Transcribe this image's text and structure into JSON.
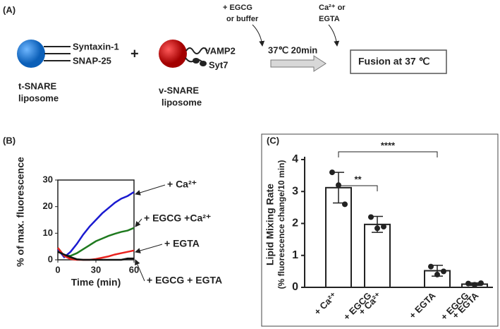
{
  "panel_a": {
    "label": "(A)",
    "t_snare_proteins": [
      "Syntaxin-1",
      "SNAP-25"
    ],
    "t_snare_name": [
      "t-SNARE",
      "liposome"
    ],
    "plus": "+",
    "v_snare_proteins": [
      "VAMP2",
      "Syt7"
    ],
    "v_snare_name": [
      "v-SNARE",
      "liposome"
    ],
    "first_addition": [
      "+ EGCG",
      "or buffer"
    ],
    "incubation": "37℃ 20min",
    "second_addition": [
      "Ca²⁺ or",
      "EGTA"
    ],
    "result": "Fusion at 37 ℃"
  },
  "chart_data": [
    {
      "type": "line",
      "panel_label": "(B)",
      "xlabel": "Time (min)",
      "ylabel": "% of max. fluorescence",
      "x": [
        0,
        5,
        10,
        15,
        20,
        25,
        30,
        35,
        40,
        45,
        50,
        55,
        60
      ],
      "series": [
        {
          "name": "+ Ca²⁺",
          "color": "#1a1ad0",
          "values": [
            4,
            1,
            3,
            6,
            9.5,
            12.5,
            15,
            17.5,
            19.5,
            21.5,
            23,
            24,
            25.5
          ]
        },
        {
          "name": "+ EGCG +Ca²⁺",
          "color": "#1f7a1f",
          "values": [
            4.5,
            1.5,
            1.5,
            2.5,
            4,
            5.5,
            7,
            8,
            9,
            9.8,
            10.5,
            11,
            12
          ]
        },
        {
          "name": "+ EGTA",
          "color": "#e8231f",
          "values": [
            4.5,
            1.5,
            0.3,
            0,
            0,
            0,
            0.3,
            0.8,
            1.3,
            2,
            2.5,
            3,
            3.5
          ]
        },
        {
          "name": "+ EGCG + EGTA",
          "color": "#111111",
          "values": [
            3,
            2,
            1,
            0.2,
            0,
            0,
            0,
            0,
            0,
            0,
            0,
            0.5,
            0.5
          ]
        }
      ],
      "xlim": [
        0,
        60
      ],
      "ylim": [
        0,
        30
      ],
      "xticks": [
        0,
        30,
        60
      ],
      "yticks": [
        0,
        10,
        20,
        30
      ]
    },
    {
      "type": "bar",
      "panel_label": "(C)",
      "ylabel": [
        "Lipid Mixing Rate",
        "(% fluorescence change/10 min)"
      ],
      "categories": [
        [
          "+ Ca²⁺"
        ],
        [
          "+ EGCG",
          "+ Ca²⁺"
        ],
        [
          "+ EGTA"
        ],
        [
          "+ EGCG",
          "+ EGTA"
        ]
      ],
      "values": [
        3.12,
        1.97,
        0.52,
        0.1
      ],
      "errors": [
        0.48,
        0.25,
        0.17,
        0.04
      ],
      "points": [
        [
          3.6,
          3.2,
          2.6
        ],
        [
          2.2,
          1.85,
          1.9
        ],
        [
          0.65,
          0.4,
          0.5
        ],
        [
          0.12,
          0.08,
          0.13
        ]
      ],
      "color": "#ffffff",
      "ylim": [
        0,
        4
      ],
      "yticks": [
        0,
        1,
        2,
        3,
        4
      ],
      "significance": [
        "**",
        "****"
      ]
    }
  ]
}
